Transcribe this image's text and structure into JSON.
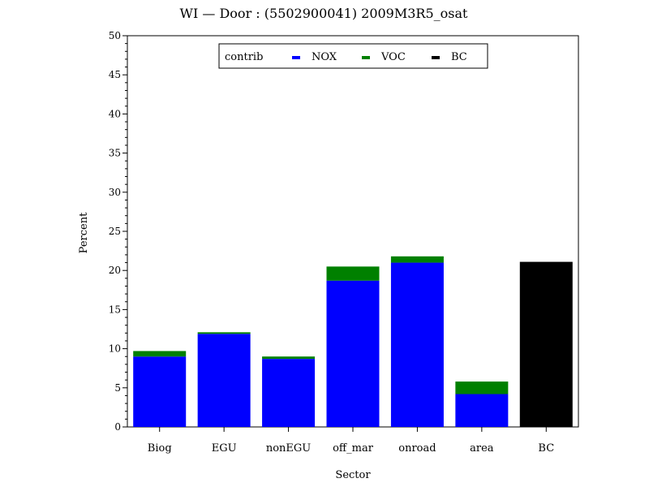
{
  "chart_data": {
    "type": "bar",
    "stacked": true,
    "title": "WI  —  Door  :  (5502900041)  2009M3R5_osat",
    "xlabel": "Sector",
    "ylabel": "Percent",
    "ylim": [
      0,
      50
    ],
    "yticks": [
      0,
      5,
      10,
      15,
      20,
      25,
      30,
      35,
      40,
      45,
      50
    ],
    "categories": [
      "Biog",
      "EGU",
      "nonEGU",
      "off_mar",
      "onroad",
      "area",
      "BC"
    ],
    "legend": {
      "title": "contrib",
      "placement": "top-center"
    },
    "series": [
      {
        "name": "NOX",
        "color": "#0000ff",
        "values": [
          9.0,
          11.9,
          8.7,
          18.7,
          21.0,
          4.2,
          0
        ]
      },
      {
        "name": "VOC",
        "color": "#008000",
        "values": [
          0.7,
          0.2,
          0.3,
          1.8,
          0.8,
          1.6,
          0
        ]
      },
      {
        "name": "BC",
        "color": "#000000",
        "values": [
          0,
          0,
          0,
          0,
          0,
          0,
          21.1
        ]
      }
    ]
  }
}
